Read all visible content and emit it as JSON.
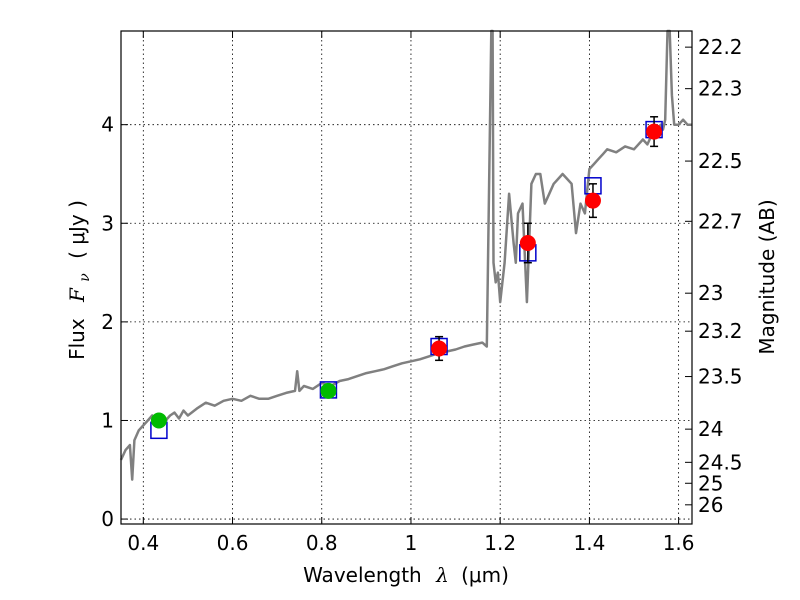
{
  "chart_data": {
    "type": "line",
    "xlabel_text": "Wavelength",
    "xlabel_symbol": "λ",
    "xlabel_unit": "(μm)",
    "ylabel_text": "Flux",
    "ylabel_symbol": "F",
    "ylabel_subscript": "ν",
    "ylabel_unit": "( μJy )",
    "y2label": "Magnitude (AB)",
    "xlim": [
      0.35,
      1.63
    ],
    "ylim": [
      -0.05,
      4.95
    ],
    "grid": true,
    "x_ticks": [
      0.4,
      0.6,
      0.8,
      1.0,
      1.2,
      1.4,
      1.6
    ],
    "x_tick_labels": [
      "0.4",
      "0.6",
      "0.8",
      "1",
      "1.2",
      "1.4",
      "1.6"
    ],
    "y_ticks": [
      0,
      1,
      2,
      3,
      4
    ],
    "y_tick_labels": [
      "0",
      "1",
      "2",
      "3",
      "4"
    ],
    "mag_ticks": [
      {
        "value": 22.2,
        "label": "22.2"
      },
      {
        "value": 22.3,
        "label": "22.3"
      },
      {
        "value": 22.5,
        "label": "22.5"
      },
      {
        "value": 22.7,
        "label": "22.7"
      },
      {
        "value": 23,
        "label": "23"
      },
      {
        "value": 23.2,
        "label": "23.2"
      },
      {
        "value": 23.5,
        "label": "23.5"
      },
      {
        "value": 24,
        "label": "24"
      },
      {
        "value": 24.5,
        "label": "24.5"
      },
      {
        "value": 25,
        "label": "25"
      },
      {
        "value": 26,
        "label": "26"
      }
    ],
    "series": [
      {
        "kind": "model-spectrum",
        "color": "#808080",
        "x": [
          0.35,
          0.36,
          0.37,
          0.375,
          0.38,
          0.385,
          0.39,
          0.4,
          0.41,
          0.42,
          0.43,
          0.44,
          0.45,
          0.46,
          0.47,
          0.48,
          0.49,
          0.5,
          0.52,
          0.54,
          0.56,
          0.58,
          0.6,
          0.62,
          0.64,
          0.66,
          0.68,
          0.7,
          0.72,
          0.74,
          0.745,
          0.75,
          0.76,
          0.78,
          0.8,
          0.82,
          0.84,
          0.86,
          0.88,
          0.9,
          0.92,
          0.94,
          0.96,
          0.98,
          1.0,
          1.02,
          1.04,
          1.06,
          1.08,
          1.1,
          1.12,
          1.14,
          1.16,
          1.17,
          1.18,
          1.183,
          1.185,
          1.19,
          1.195,
          1.2,
          1.21,
          1.22,
          1.23,
          1.235,
          1.24,
          1.25,
          1.26,
          1.27,
          1.28,
          1.29,
          1.3,
          1.31,
          1.32,
          1.33,
          1.34,
          1.35,
          1.36,
          1.37,
          1.38,
          1.39,
          1.4,
          1.41,
          1.42,
          1.43,
          1.44,
          1.46,
          1.48,
          1.5,
          1.52,
          1.53,
          1.54,
          1.55,
          1.56,
          1.565,
          1.57,
          1.575,
          1.58,
          1.585,
          1.59,
          1.6,
          1.61,
          1.62,
          1.63
        ],
        "y": [
          0.6,
          0.7,
          0.75,
          0.4,
          0.8,
          0.85,
          0.9,
          0.95,
          1.0,
          1.05,
          0.98,
          1.02,
          1.0,
          1.05,
          1.08,
          1.02,
          1.1,
          1.05,
          1.12,
          1.18,
          1.15,
          1.2,
          1.22,
          1.2,
          1.25,
          1.22,
          1.22,
          1.25,
          1.28,
          1.3,
          1.5,
          1.3,
          1.35,
          1.32,
          1.38,
          1.35,
          1.4,
          1.42,
          1.45,
          1.48,
          1.5,
          1.52,
          1.55,
          1.58,
          1.6,
          1.62,
          1.65,
          1.68,
          1.7,
          1.72,
          1.75,
          1.77,
          1.79,
          1.75,
          4.95,
          4.95,
          2.6,
          2.4,
          2.5,
          2.2,
          2.6,
          3.3,
          2.8,
          2.6,
          3.1,
          3.2,
          2.2,
          3.4,
          3.5,
          3.5,
          3.2,
          3.3,
          3.4,
          3.45,
          3.5,
          3.45,
          3.4,
          2.9,
          3.2,
          3.1,
          3.55,
          3.6,
          3.65,
          3.7,
          3.75,
          3.72,
          3.78,
          3.75,
          3.85,
          3.8,
          3.9,
          3.95,
          4.0,
          3.95,
          4.05,
          4.95,
          4.95,
          4.3,
          4.0,
          4.0,
          4.05,
          4.0,
          4.0
        ]
      },
      {
        "kind": "model-photometry",
        "marker": "open-square",
        "color": "#0000cc",
        "x": [
          0.435,
          0.815,
          1.063,
          1.262,
          1.408,
          1.545
        ],
        "y": [
          0.9,
          1.31,
          1.75,
          2.7,
          3.38,
          3.95
        ]
      },
      {
        "kind": "observed-photometry-optical",
        "marker": "filled-circle",
        "color": "#00bb00",
        "x": [
          0.435,
          0.815
        ],
        "y": [
          1.0,
          1.3
        ],
        "yerr": [
          0.05,
          0.05
        ]
      },
      {
        "kind": "observed-photometry-nir",
        "marker": "filled-circle",
        "color": "#ff0000",
        "x": [
          1.063,
          1.262,
          1.408,
          1.545
        ],
        "y": [
          1.73,
          2.8,
          3.23,
          3.93
        ],
        "yerr": [
          0.12,
          0.2,
          0.17,
          0.15
        ]
      }
    ]
  }
}
